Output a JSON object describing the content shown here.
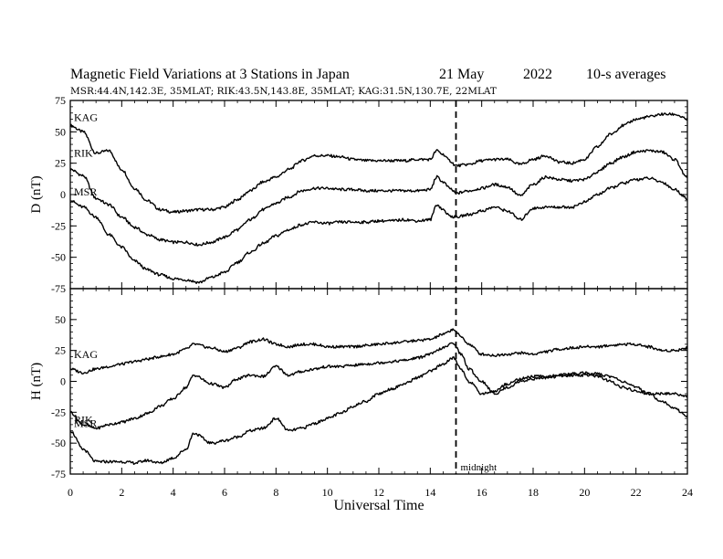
{
  "header": {
    "title": "Magnetic Field Variations at 3 Stations in Japan",
    "date": "21 May",
    "year": "2022",
    "averaging": "10-s averages",
    "stations_line": "MSR:44.4N,142.3E, 35MLAT;  RIK:43.5N,143.8E, 35MLAT;  KAG:31.5N,130.7E, 22MLAT"
  },
  "chart_data": [
    {
      "type": "line",
      "panel": "top",
      "ylabel": "D (nT)",
      "xlabel": "",
      "ylim": [
        -75,
        75
      ],
      "yticks": [
        75,
        50,
        25,
        0,
        -25,
        -50,
        -75
      ],
      "xlim": [
        0,
        24
      ],
      "series": [
        {
          "name": "KAG",
          "x": [
            0,
            0.5,
            1,
            1.5,
            2,
            2.5,
            3,
            3.5,
            4,
            4.5,
            5,
            5.5,
            6,
            6.5,
            7,
            7.5,
            8,
            8.5,
            9,
            9.5,
            10,
            10.5,
            11,
            11.5,
            12,
            12.5,
            13,
            13.5,
            14,
            14.25,
            14.5,
            14.75,
            15,
            15.5,
            16,
            16.5,
            17,
            17.5,
            18,
            18.5,
            19,
            19.5,
            20,
            20.5,
            21,
            21.5,
            22,
            22.5,
            23,
            23.5,
            24
          ],
          "y": [
            55,
            50,
            33,
            35,
            20,
            5,
            -5,
            -12,
            -14,
            -13,
            -12,
            -12,
            -10,
            -4,
            3,
            10,
            14,
            20,
            27,
            31,
            31,
            30,
            28,
            27,
            27,
            27,
            27,
            28,
            28,
            35,
            32,
            27,
            23,
            24,
            27,
            28,
            28,
            24,
            28,
            31,
            26,
            25,
            28,
            38,
            48,
            55,
            60,
            62,
            64,
            64,
            60
          ]
        },
        {
          "name": "RIK",
          "x": [
            0,
            0.5,
            1,
            1.5,
            2,
            2.5,
            3,
            3.5,
            4,
            4.5,
            5,
            5.5,
            6,
            6.5,
            7,
            7.5,
            8,
            8.5,
            9,
            9.5,
            10,
            10.5,
            11,
            11.5,
            12,
            12.5,
            13,
            13.5,
            14,
            14.25,
            14.5,
            14.75,
            15,
            15.5,
            16,
            16.5,
            17,
            17.5,
            18,
            18.5,
            19,
            19.5,
            20,
            20.5,
            21,
            21.5,
            22,
            22.5,
            23,
            23.5,
            24
          ],
          "y": [
            20,
            15,
            -3,
            -8,
            -18,
            -26,
            -32,
            -36,
            -38,
            -38,
            -40,
            -38,
            -34,
            -28,
            -20,
            -12,
            -7,
            -2,
            3,
            5,
            5,
            4,
            4,
            3,
            3,
            3,
            3,
            3,
            4,
            14,
            10,
            5,
            1,
            3,
            5,
            8,
            6,
            -1,
            8,
            14,
            12,
            11,
            12,
            18,
            25,
            30,
            34,
            35,
            34,
            28,
            13
          ]
        },
        {
          "name": "MSR",
          "x": [
            0,
            0.5,
            1,
            1.5,
            2,
            2.5,
            3,
            3.5,
            4,
            4.5,
            5,
            5.5,
            6,
            6.5,
            7,
            7.5,
            8,
            8.5,
            9,
            9.5,
            10,
            10.5,
            11,
            11.5,
            12,
            12.5,
            13,
            13.5,
            14,
            14.25,
            14.5,
            14.75,
            15,
            15.5,
            16,
            16.5,
            17,
            17.5,
            18,
            18.5,
            19,
            19.5,
            20,
            20.5,
            21,
            21.5,
            22,
            22.5,
            23,
            23.5,
            24
          ],
          "y": [
            -5,
            -10,
            -18,
            -32,
            -42,
            -53,
            -60,
            -64,
            -67,
            -68,
            -70,
            -66,
            -62,
            -54,
            -46,
            -39,
            -33,
            -28,
            -24,
            -22,
            -23,
            -22,
            -22,
            -22,
            -21,
            -21,
            -20,
            -21,
            -20,
            -8,
            -12,
            -17,
            -18,
            -16,
            -13,
            -10,
            -13,
            -20,
            -11,
            -10,
            -10,
            -10,
            -6,
            0,
            5,
            9,
            12,
            13,
            10,
            4,
            -3
          ]
        }
      ]
    },
    {
      "type": "line",
      "panel": "bottom",
      "ylabel": "H (nT)",
      "xlabel": "Universal Time",
      "ylim": [
        -75,
        75
      ],
      "yticks": [
        50,
        25,
        0,
        -25,
        -50,
        -75
      ],
      "xlim": [
        0,
        24
      ],
      "xticks": [
        0,
        2,
        4,
        6,
        8,
        10,
        12,
        14,
        16,
        18,
        20,
        22,
        24
      ],
      "annotation": {
        "x": 15,
        "text": "midnight"
      },
      "series": [
        {
          "name": "KAG",
          "x": [
            0,
            0.5,
            1,
            1.5,
            2,
            2.5,
            3,
            3.5,
            4,
            4.5,
            4.8,
            5.5,
            6,
            6.5,
            7,
            7.5,
            8,
            8.5,
            9,
            9.5,
            10,
            10.5,
            11,
            11.5,
            12,
            12.5,
            13,
            13.5,
            14,
            14.5,
            14.9,
            15.2,
            15.5,
            16,
            16.5,
            17,
            17.5,
            18,
            18.5,
            19,
            19.5,
            20,
            20.5,
            21,
            21.5,
            22,
            22.5,
            23,
            23.5,
            24
          ],
          "y": [
            10,
            7,
            10,
            12,
            14,
            16,
            18,
            20,
            22,
            26,
            30,
            27,
            24,
            27,
            32,
            34,
            30,
            28,
            30,
            30,
            28,
            28,
            28,
            29,
            30,
            31,
            32,
            33,
            34,
            38,
            42,
            36,
            30,
            22,
            21,
            22,
            23,
            22,
            24,
            26,
            27,
            28,
            28,
            29,
            30,
            30,
            28,
            25,
            25,
            27
          ]
        },
        {
          "name": "RIK",
          "x": [
            0,
            0.5,
            1,
            1.5,
            2,
            2.5,
            3,
            3.5,
            4,
            4.5,
            4.8,
            5.5,
            6,
            6.5,
            7,
            7.5,
            8,
            8.5,
            9,
            9.5,
            10,
            10.5,
            11,
            11.5,
            12,
            12.5,
            13,
            13.5,
            14,
            14.5,
            14.9,
            15.2,
            15.5,
            16,
            16.5,
            17,
            17.5,
            18,
            18.5,
            19,
            19.5,
            20,
            20.5,
            21,
            21.5,
            22,
            22.5,
            23,
            23.5,
            24
          ],
          "y": [
            -25,
            -35,
            -38,
            -35,
            -33,
            -30,
            -26,
            -20,
            -14,
            -5,
            5,
            -2,
            -5,
            2,
            5,
            4,
            12,
            5,
            8,
            10,
            12,
            12,
            13,
            14,
            15,
            16,
            17,
            19,
            22,
            27,
            31,
            22,
            10,
            0,
            -10,
            -5,
            0,
            2,
            3,
            4,
            5,
            5,
            6,
            4,
            0,
            -5,
            -10,
            -16,
            -22,
            -28
          ]
        },
        {
          "name": "MSR",
          "x": [
            0,
            0.5,
            1,
            1.5,
            2,
            2.5,
            3,
            3.5,
            4,
            4.5,
            4.8,
            5.5,
            6,
            6.5,
            7,
            7.5,
            8,
            8.5,
            9,
            9.5,
            10,
            10.5,
            11,
            11.5,
            12,
            12.5,
            13,
            13.5,
            14,
            14.5,
            14.9,
            15.2,
            15.5,
            16,
            16.5,
            17,
            17.5,
            18,
            18.5,
            19,
            19.5,
            20,
            20.5,
            21,
            21.5,
            22,
            22.5,
            23,
            23.5,
            24
          ],
          "y": [
            -40,
            -55,
            -65,
            -65,
            -65,
            -66,
            -64,
            -66,
            -62,
            -55,
            -42,
            -50,
            -48,
            -45,
            -40,
            -38,
            -30,
            -40,
            -38,
            -34,
            -30,
            -26,
            -20,
            -16,
            -10,
            -6,
            -2,
            3,
            8,
            14,
            19,
            10,
            0,
            -10,
            -8,
            -2,
            2,
            4,
            4,
            5,
            6,
            7,
            4,
            0,
            -5,
            -8,
            -10,
            -10,
            -10,
            -12
          ]
        }
      ]
    }
  ]
}
